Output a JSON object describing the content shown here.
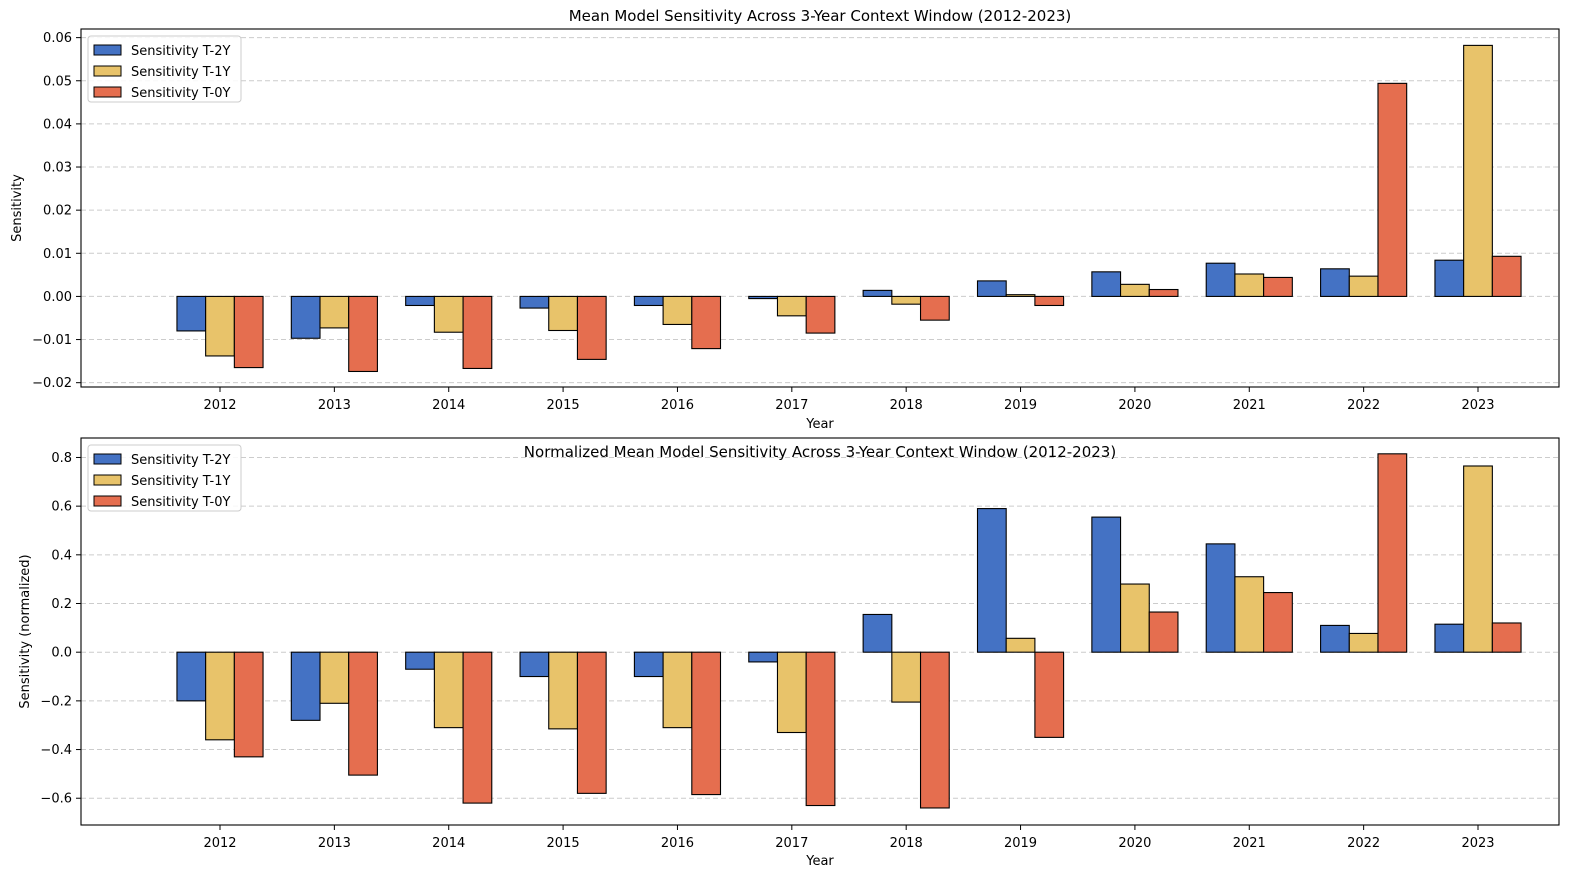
{
  "colors": {
    "t2y": "#4472c4",
    "t1y": "#e8c36a",
    "t0y": "#e56e4f",
    "edge": "#000000",
    "grid": "#cccccc"
  },
  "chart_data": [
    {
      "type": "bar",
      "title": "Mean Model Sensitivity Across 3-Year Context Window (2012-2023)",
      "xlabel": "Year",
      "ylabel": "Sensitivity",
      "categories": [
        "2012",
        "2013",
        "2014",
        "2015",
        "2016",
        "2017",
        "2018",
        "2019",
        "2020",
        "2021",
        "2022",
        "2023"
      ],
      "ylim": [
        -0.021,
        0.062
      ],
      "yticks": [
        -0.02,
        -0.01,
        0.0,
        0.01,
        0.02,
        0.03,
        0.04,
        0.05,
        0.06
      ],
      "ytick_labels": [
        "−0.02",
        "−0.01",
        "0.00",
        "0.01",
        "0.02",
        "0.03",
        "0.04",
        "0.05",
        "0.06"
      ],
      "grid": "y-dashed",
      "legend_position": "upper-left",
      "series": [
        {
          "name": "Sensitivity T-2Y",
          "color_key": "t2y",
          "values": [
            -0.008,
            -0.0097,
            -0.0021,
            -0.0027,
            -0.0021,
            -0.0005,
            0.0014,
            0.0036,
            0.0057,
            0.0077,
            0.0064,
            0.0084
          ]
        },
        {
          "name": "Sensitivity T-1Y",
          "color_key": "t1y",
          "values": [
            -0.0138,
            -0.0073,
            -0.0083,
            -0.0079,
            -0.0065,
            -0.0045,
            -0.0018,
            0.0004,
            0.0028,
            0.0052,
            0.0047,
            0.0582
          ]
        },
        {
          "name": "Sensitivity T-0Y",
          "color_key": "t0y",
          "values": [
            -0.0165,
            -0.0174,
            -0.0167,
            -0.0146,
            -0.0121,
            -0.0085,
            -0.0055,
            -0.0021,
            0.0016,
            0.0044,
            0.0494,
            0.0093
          ]
        }
      ]
    },
    {
      "type": "bar",
      "title": "Normalized Mean Model Sensitivity Across 3-Year Context Window (2012-2023)",
      "xlabel": "Year",
      "ylabel": "Sensitivity (normalized)",
      "categories": [
        "2012",
        "2013",
        "2014",
        "2015",
        "2016",
        "2017",
        "2018",
        "2019",
        "2020",
        "2021",
        "2022",
        "2023"
      ],
      "ylim": [
        -0.71,
        0.88
      ],
      "yticks": [
        -0.6,
        -0.4,
        -0.2,
        0.0,
        0.2,
        0.4,
        0.6,
        0.8
      ],
      "ytick_labels": [
        "−0.6",
        "−0.4",
        "−0.2",
        "0.0",
        "0.2",
        "0.4",
        "0.6",
        "0.8"
      ],
      "grid": "y-dashed",
      "legend_position": "upper-left",
      "series": [
        {
          "name": "Sensitivity T-2Y",
          "color_key": "t2y",
          "values": [
            -0.2,
            -0.28,
            -0.07,
            -0.1,
            -0.1,
            -0.04,
            0.155,
            0.59,
            0.555,
            0.445,
            0.11,
            0.115
          ]
        },
        {
          "name": "Sensitivity T-1Y",
          "color_key": "t1y",
          "values": [
            -0.36,
            -0.21,
            -0.31,
            -0.315,
            -0.31,
            -0.33,
            -0.205,
            0.057,
            0.28,
            0.31,
            0.077,
            0.765
          ]
        },
        {
          "name": "Sensitivity T-0Y",
          "color_key": "t0y",
          "values": [
            -0.43,
            -0.505,
            -0.62,
            -0.58,
            -0.585,
            -0.63,
            -0.64,
            -0.35,
            0.165,
            0.245,
            0.815,
            0.12
          ]
        }
      ]
    }
  ]
}
